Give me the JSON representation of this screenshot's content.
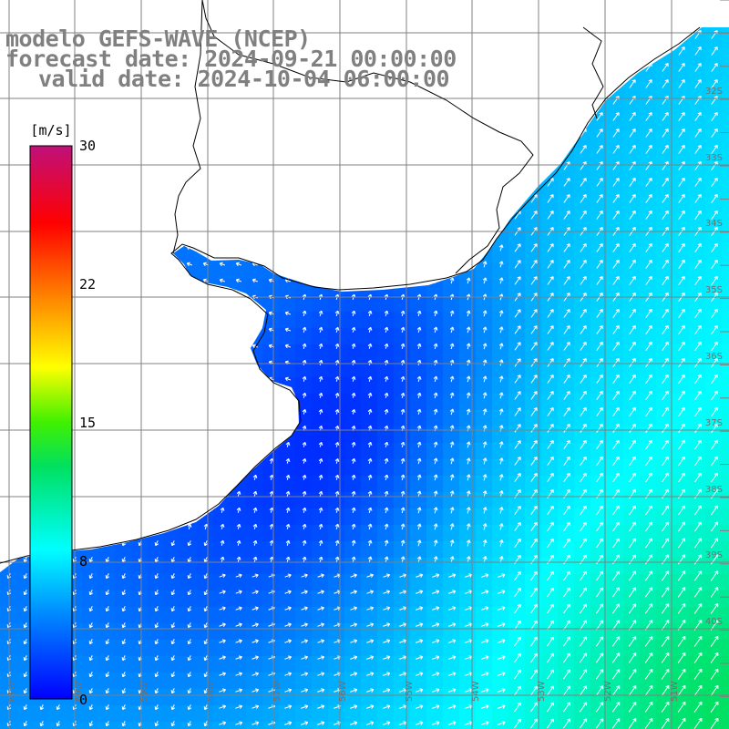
{
  "header": {
    "title_line1": "modelo GEFS-WAVE (NCEP)",
    "title_line2": "forecast date: 2024-09-21 00:00:00",
    "title_line3": "valid date: 2024-10-04 06:00:00"
  },
  "colorbar": {
    "unit": "[m/s]",
    "ticks": [
      "30",
      "22",
      "15",
      "8",
      "0"
    ],
    "stops": [
      "#0000ff",
      "#00a0ff",
      "#00ffff",
      "#00ff00",
      "#ffff00",
      "#ff8000",
      "#ff0000",
      "#c0107a"
    ]
  },
  "axes": {
    "lat_labels": [
      "32S",
      "33S",
      "34S",
      "35S",
      "36S",
      "37S",
      "38S",
      "39S",
      "40S"
    ],
    "lon_labels": [
      "61W",
      "60W",
      "59W",
      "58W",
      "57W",
      "56W",
      "55W",
      "54W",
      "53W",
      "52W",
      "51W"
    ]
  },
  "colors": {
    "land": "#ffffff",
    "grid": "#808080",
    "coast": "#000000",
    "arrow": "#ffffff"
  }
}
